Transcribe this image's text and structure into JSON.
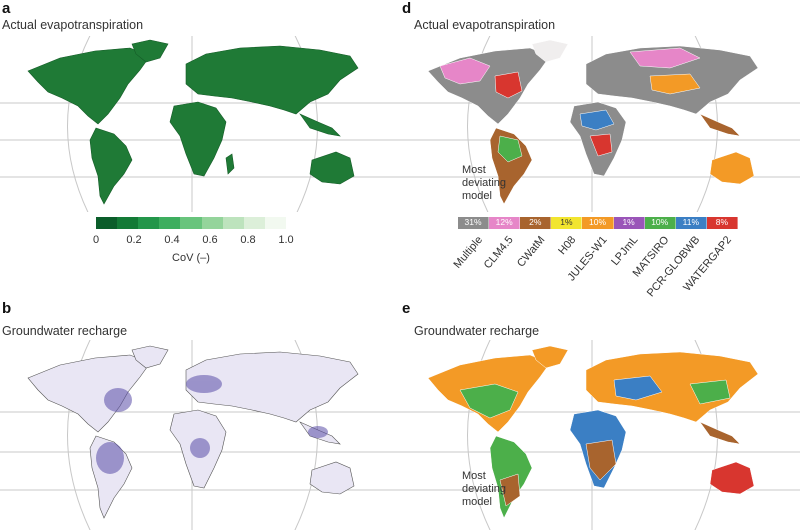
{
  "panels": {
    "a": {
      "letter": "a",
      "title": "Actual evapotranspiration"
    },
    "b": {
      "letter": "b",
      "title": "Groundwater recharge"
    },
    "d": {
      "letter": "d",
      "title": "Actual evapotranspiration"
    },
    "e": {
      "letter": "e",
      "title": "Groundwater recharge"
    }
  },
  "colorbar_a": {
    "ticks": [
      "0",
      "0.2",
      "0.4",
      "0.6",
      "0.8",
      "1.0"
    ],
    "title": "CoV (–)",
    "colors": [
      "#0b5d2a",
      "#137a36",
      "#23964a",
      "#3eae5f",
      "#68c47c",
      "#94d49b",
      "#bde3bd",
      "#dcefd9",
      "#f2f9f0"
    ]
  },
  "most_deviating": [
    "Most",
    "deviating",
    "model"
  ],
  "legend_d": {
    "models": [
      {
        "name": "Multiple",
        "pct": "31%",
        "color": "#8c8c8c"
      },
      {
        "name": "CLM4.5",
        "pct": "12%",
        "color": "#e686c8"
      },
      {
        "name": "CWatM",
        "pct": "2%",
        "color": "#a8642e"
      },
      {
        "name": "H08",
        "pct": "1%",
        "color": "#f2e52f"
      },
      {
        "name": "JULES-W1",
        "pct": "10%",
        "color": "#f39a26"
      },
      {
        "name": "LPJmL",
        "pct": "1%",
        "color": "#9a55b8"
      },
      {
        "name": "MATSIRO",
        "pct": "10%",
        "color": "#4caf4a"
      },
      {
        "name": "PCR-GLOBWB",
        "pct": "11%",
        "color": "#3b7fc4"
      },
      {
        "name": "WATERGAP2",
        "pct": "8%",
        "color": "#d8362f"
      }
    ]
  }
}
